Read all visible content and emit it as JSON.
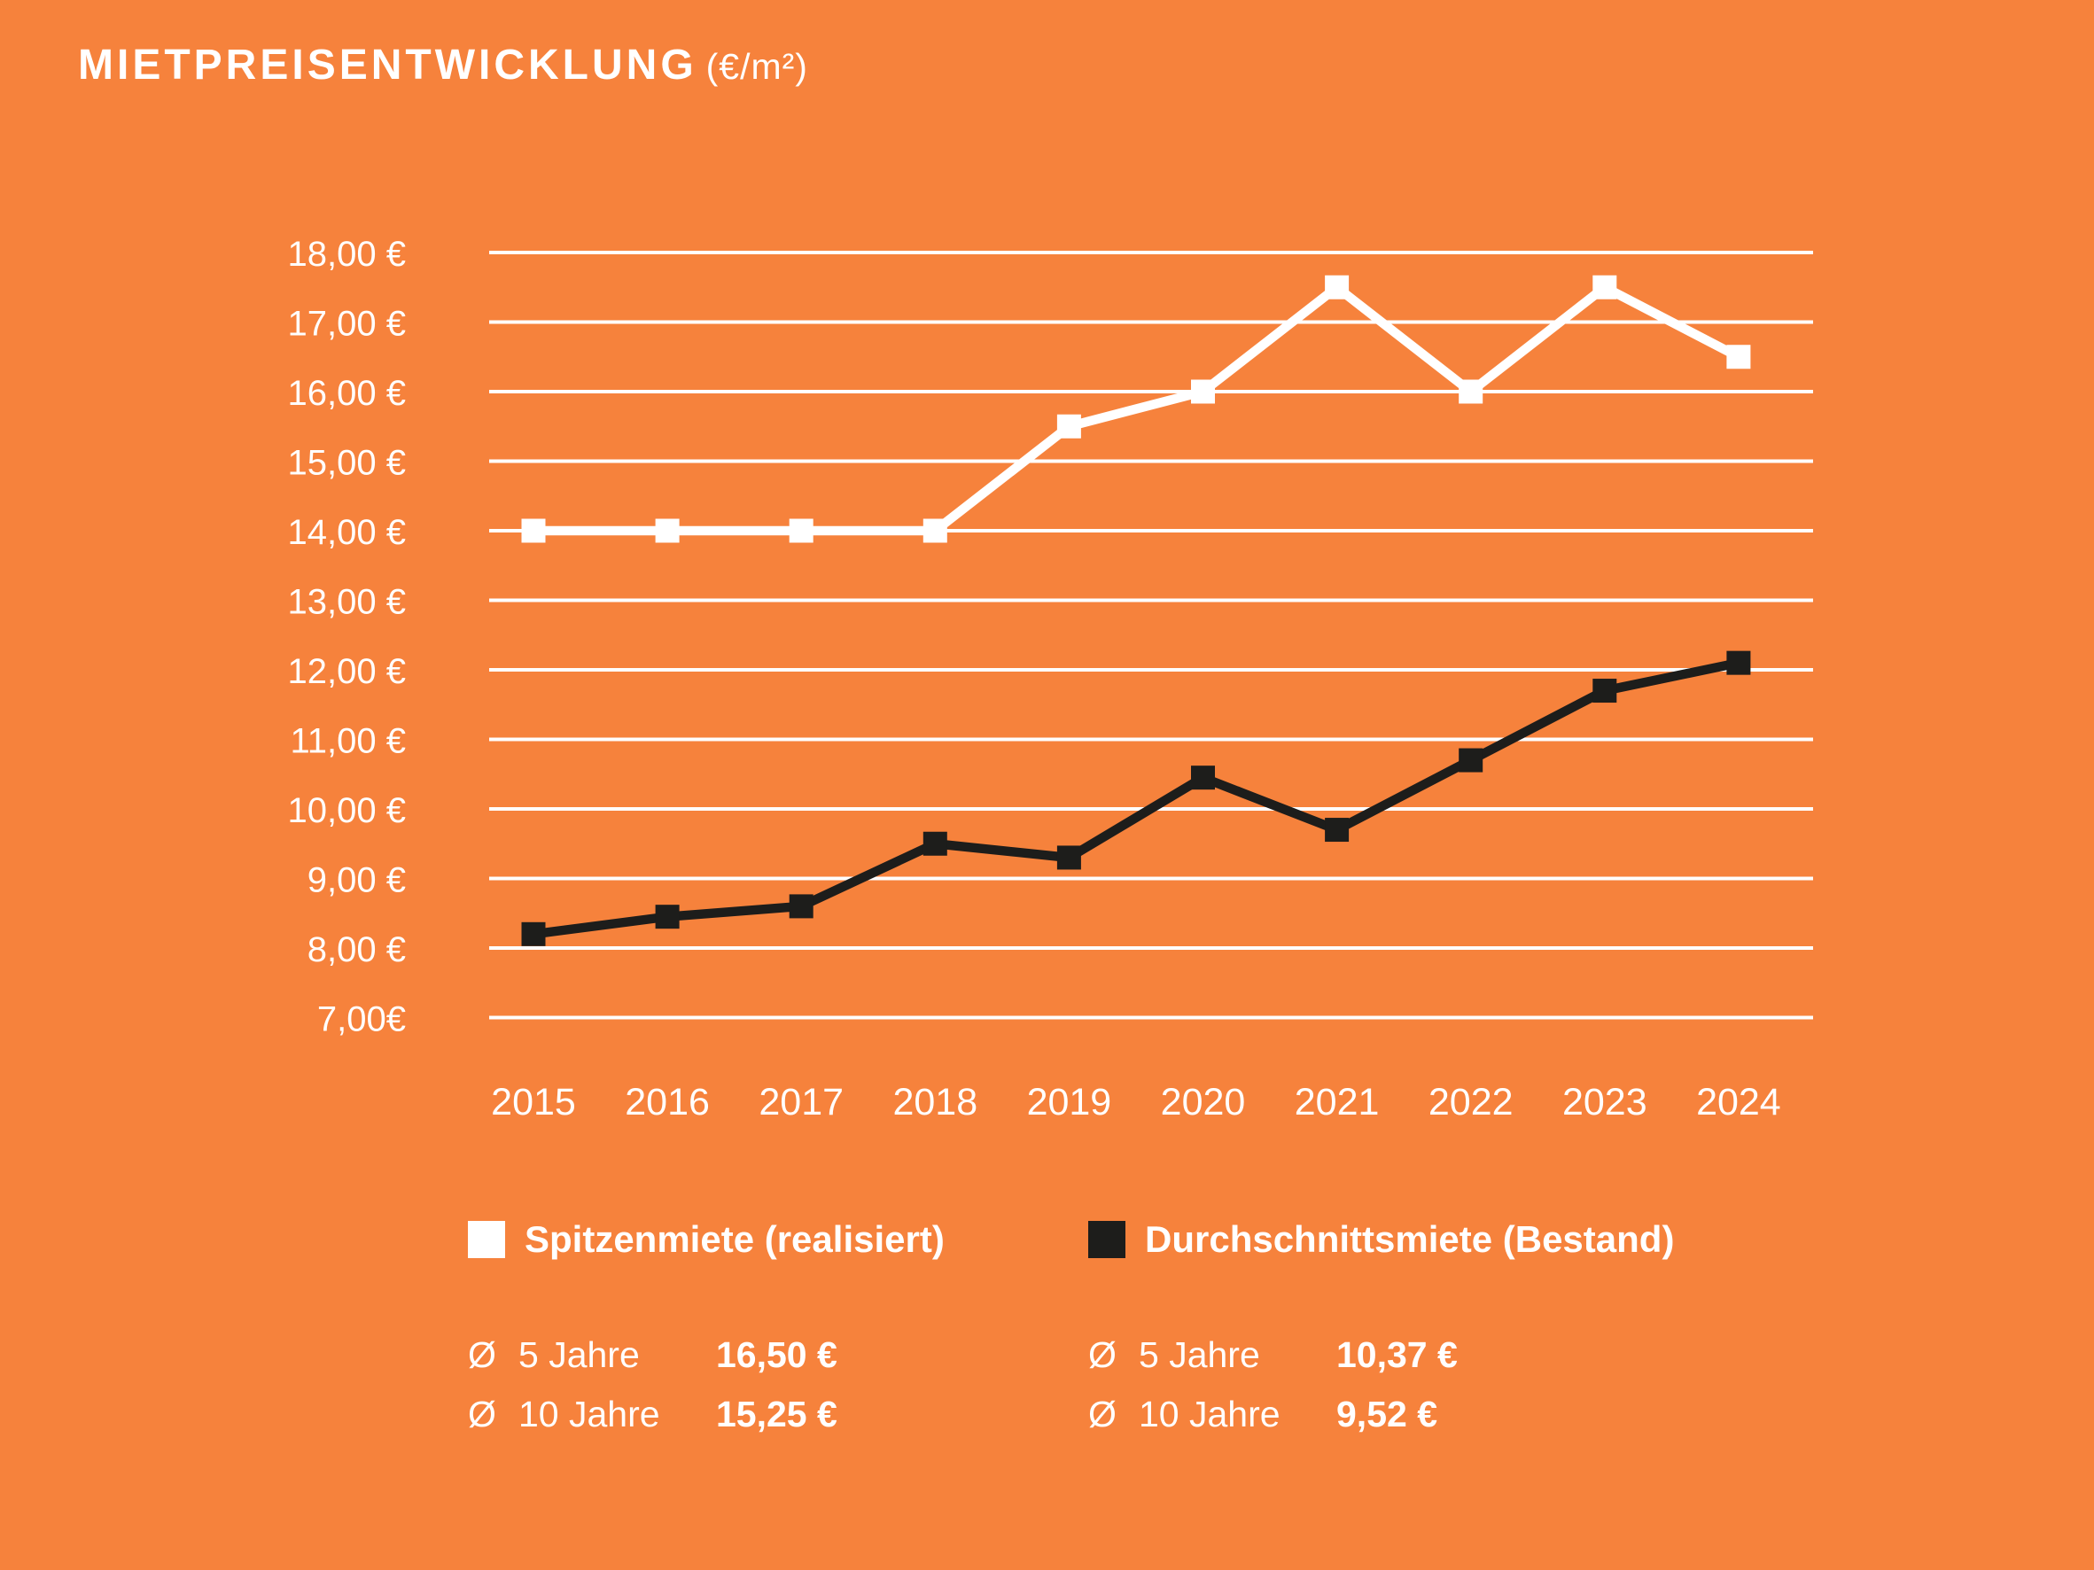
{
  "header": {
    "title": "MIETPREISENTWICKLUNG",
    "unit": "(€/m²)"
  },
  "chart_data": {
    "type": "line",
    "categories": [
      "2015",
      "2016",
      "2017",
      "2018",
      "2019",
      "2020",
      "2021",
      "2022",
      "2023",
      "2024"
    ],
    "series": [
      {
        "name": "Spitzenmiete (realisiert)",
        "color": "#FFFFFF",
        "values": [
          14.0,
          14.0,
          14.0,
          14.0,
          15.5,
          16.0,
          17.5,
          16.0,
          17.5,
          16.5
        ]
      },
      {
        "name": "Durchschnittsmiete (Bestand)",
        "color": "#1D1D1B",
        "values": [
          8.2,
          8.45,
          8.6,
          9.5,
          9.3,
          10.45,
          9.7,
          10.7,
          11.7,
          12.1
        ]
      }
    ],
    "ylim": [
      7,
      18
    ],
    "ytick_step": 1,
    "ytick_labels": [
      "18,00 €",
      "17,00 €",
      "16,00 €",
      "15,00 €",
      "14,00 €",
      "13,00 €",
      "12,00 €",
      "11,00 €",
      "10,00 €",
      "9,00 €",
      "8,00 €",
      "7,00€"
    ],
    "grid": true,
    "legend_position": "bottom"
  },
  "stats": {
    "left": {
      "rows": [
        {
          "prefix": "Ø",
          "label": "5 Jahre",
          "value": "16,50 €"
        },
        {
          "prefix": "Ø",
          "label": "10 Jahre",
          "value": "15,25 €"
        }
      ]
    },
    "right": {
      "rows": [
        {
          "prefix": "Ø",
          "label": "5 Jahre",
          "value": "10,37 €"
        },
        {
          "prefix": "Ø",
          "label": "10 Jahre",
          "value": "9,52 €"
        }
      ]
    }
  },
  "colors": {
    "background": "#F6823C",
    "grid": "#FFFFFF",
    "tick_text": "#FFFFFF"
  }
}
